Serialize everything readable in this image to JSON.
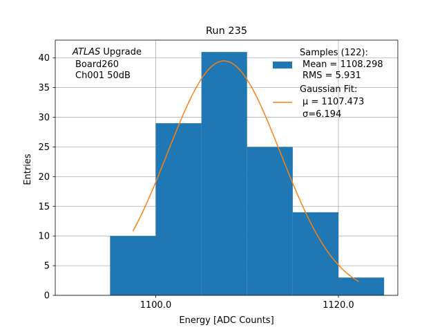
{
  "chart_data": {
    "type": "bar",
    "title": "Run 235",
    "xlabel": "Energy [ADC Counts]",
    "ylabel": "Entries",
    "xlim": [
      1089,
      1126.5
    ],
    "ylim": [
      0,
      43
    ],
    "grid": true,
    "xticks": [
      1100,
      1120
    ],
    "xtick_labels": [
      "1100.0",
      "1120.0"
    ],
    "yticks": [
      0,
      5,
      10,
      15,
      20,
      25,
      30,
      35,
      40
    ],
    "bins": [
      {
        "x0": 1095,
        "x1": 1100,
        "count": 10
      },
      {
        "x0": 1100,
        "x1": 1105,
        "count": 29
      },
      {
        "x0": 1105,
        "x1": 1110,
        "count": 41
      },
      {
        "x0": 1110,
        "x1": 1115,
        "count": 25
      },
      {
        "x0": 1115,
        "x1": 1120,
        "count": 14
      },
      {
        "x0": 1120,
        "x1": 1125,
        "count": 3
      }
    ],
    "fit": {
      "mu": 1107.473,
      "sigma": 6.194,
      "amplitude": 39.5,
      "x_range": [
        1097.5,
        1122.2
      ]
    },
    "bar_color": "#1f77b4",
    "fit_color": "#ff7f0e",
    "annotation": {
      "atlas": "ATLAS",
      "upgrade": " Upgrade",
      "line2": "Board260",
      "line3": "Ch001 50dB"
    },
    "legend": {
      "placement": "top-right",
      "samples_header": "Samples (122):",
      "samples_mean": "Mean = 1108.298",
      "samples_rms": "RMS = 5.931",
      "fit_header": "Gaussian Fit:",
      "fit_mu": "μ = 1107.473",
      "fit_sigma": "σ=6.194"
    }
  }
}
